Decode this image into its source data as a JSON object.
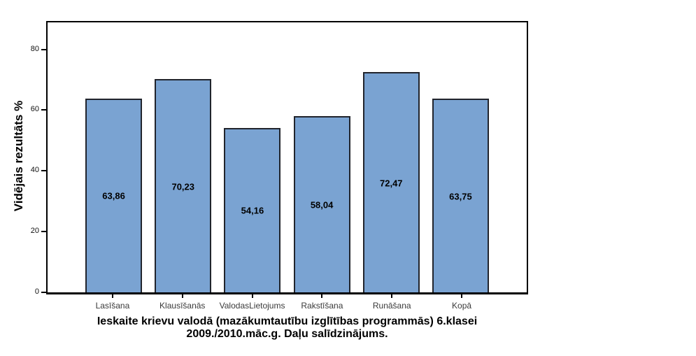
{
  "chart_data": {
    "type": "bar",
    "title_lines": [
      "Ieskaite krievu valodā (mazākumtautību izglītības programmās) 6.klasei",
      "2009./2010.māc.g. Daļu salīdzinājums."
    ],
    "ylabel": "Vidējais rezultāts %",
    "xlabel": "",
    "categories": [
      "Lasīšana",
      "Klausīšanās",
      "ValodasLietojums",
      "Rakstīšana",
      "Runāšana",
      "Kopā"
    ],
    "values": [
      63.86,
      70.23,
      54.16,
      58.04,
      72.47,
      63.75
    ],
    "value_labels": [
      "63,86",
      "70,23",
      "54,16",
      "58,04",
      "72,47",
      "63,75"
    ],
    "y_ticks": [
      0,
      20,
      40,
      60,
      80
    ],
    "ylim": [
      0,
      88.9
    ],
    "grid": false,
    "legend": "none",
    "bar_color": "#7aa3d2",
    "bar_border_color": "#21242c",
    "axis_color": "#000000",
    "background_color": "#ffffff"
  }
}
